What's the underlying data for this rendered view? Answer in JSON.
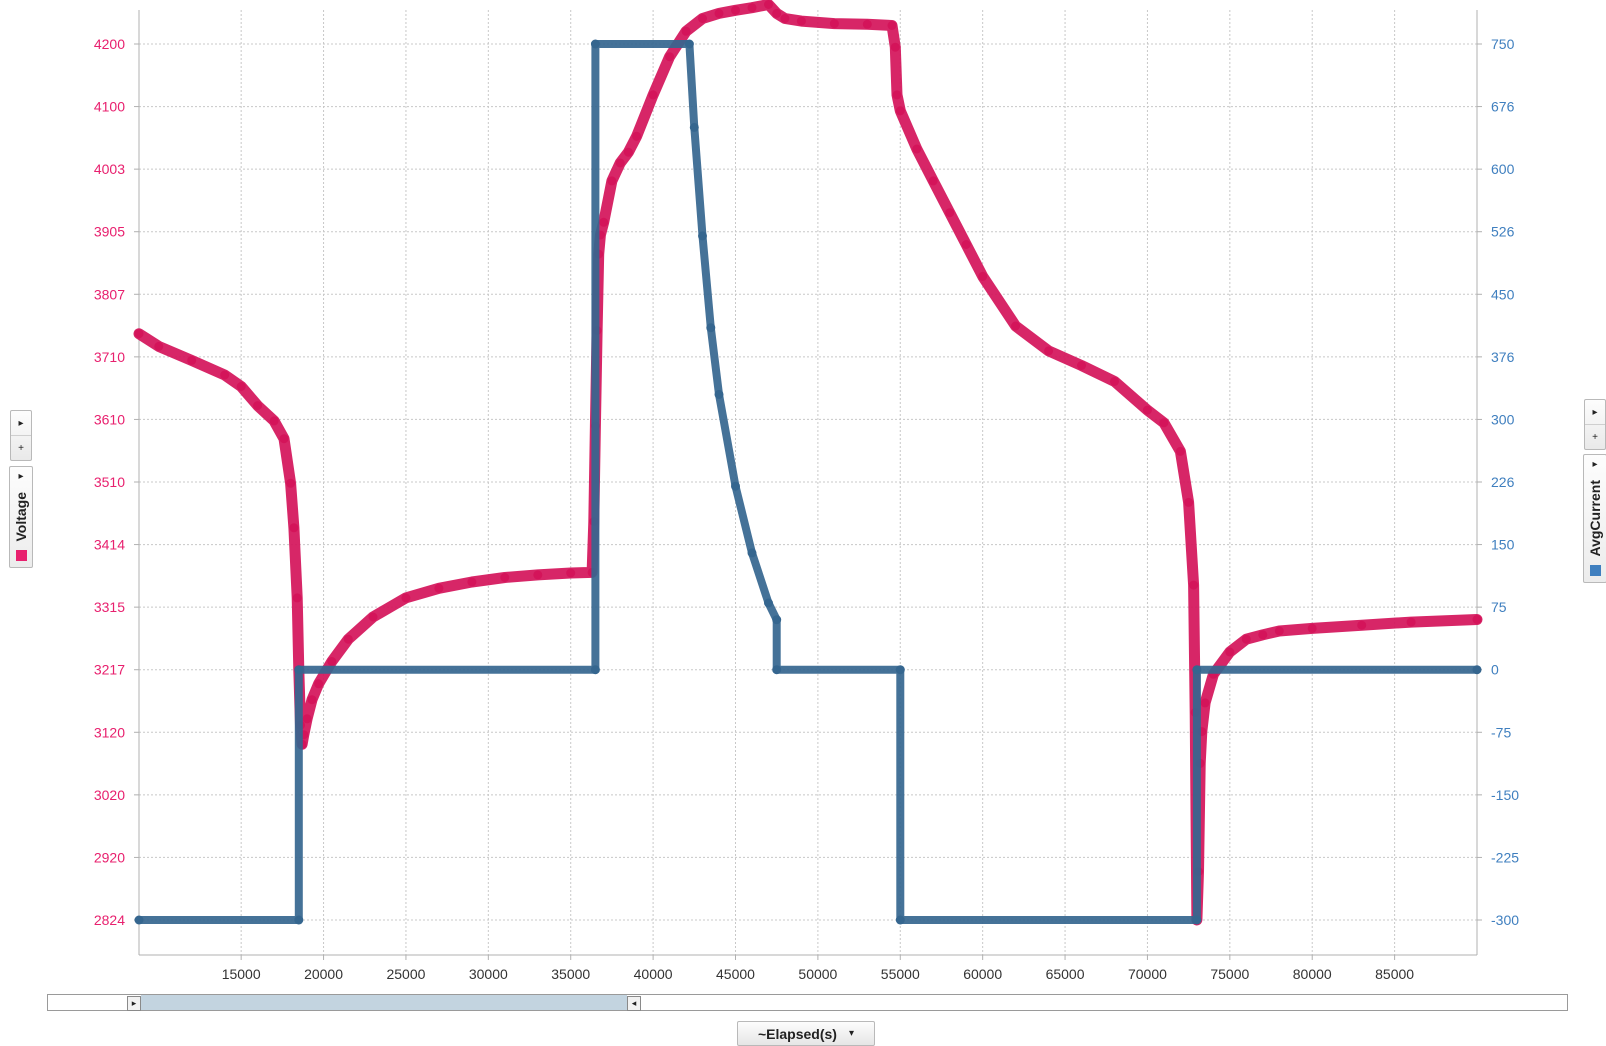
{
  "chart_data": {
    "type": "scatter",
    "title": "",
    "x_axis_selector": "~Elapsed(s)",
    "xlabel": "~Elapsed(s)",
    "xlim": [
      8800,
      90000
    ],
    "x_ticks": [
      "15000",
      "20000",
      "25000",
      "30000",
      "35000",
      "40000",
      "45000",
      "50000",
      "55000",
      "60000",
      "65000",
      "70000",
      "75000",
      "80000",
      "85000"
    ],
    "y_left": {
      "label": "Voltage",
      "color": "#e8206e",
      "range": [
        2824,
        4200
      ],
      "ticks": [
        "4200",
        "4100",
        "4003",
        "3905",
        "3807",
        "3710",
        "3610",
        "3510",
        "3414",
        "3315",
        "3217",
        "3120",
        "3020",
        "2920",
        "2824"
      ]
    },
    "y_right": {
      "label": "AvgCurrent",
      "color": "#3f7fbf",
      "range": [
        -300,
        750
      ],
      "ticks": [
        "750",
        "676",
        "600",
        "526",
        "450",
        "376",
        "300",
        "226",
        "150",
        "75",
        "0",
        "-75",
        "-150",
        "-225",
        "-300"
      ]
    },
    "grid": true,
    "series": [
      {
        "name": "Voltage",
        "axis": "left",
        "color": "#d4145a",
        "x": [
          8800,
          10000,
          12000,
          14000,
          15000,
          16000,
          17000,
          17600,
          18000,
          18200,
          18400,
          18500,
          18600,
          18700,
          18800,
          19000,
          19300,
          19700,
          20500,
          21500,
          23000,
          25000,
          27000,
          29000,
          31000,
          33000,
          35000,
          36300,
          36400,
          36500,
          36600,
          36700,
          36800,
          37000,
          37500,
          38000,
          38500,
          39000,
          40000,
          41000,
          42000,
          43000,
          44000,
          45000,
          46000,
          47000,
          47500,
          48000,
          49000,
          51000,
          53000,
          54500,
          54700,
          54800,
          55000,
          56000,
          57000,
          58000,
          59000,
          60000,
          62000,
          64000,
          66000,
          68000,
          70000,
          71000,
          72000,
          72500,
          72800,
          72900,
          73000,
          73100,
          73200,
          73300,
          73500,
          74000,
          75000,
          76000,
          77000,
          78000,
          80000,
          83000,
          86000,
          90000
        ],
        "y": [
          3745,
          3725,
          3703,
          3680,
          3662,
          3632,
          3608,
          3580,
          3510,
          3440,
          3330,
          3217,
          3130,
          3100,
          3115,
          3140,
          3170,
          3195,
          3230,
          3265,
          3300,
          3330,
          3345,
          3355,
          3362,
          3366,
          3369,
          3370,
          3450,
          3600,
          3750,
          3870,
          3900,
          3920,
          3985,
          4013,
          4030,
          4055,
          4120,
          4180,
          4220,
          4240,
          4248,
          4253,
          4257,
          4262,
          4248,
          4240,
          4236,
          4232,
          4231,
          4229,
          4195,
          4120,
          4095,
          4035,
          3985,
          3935,
          3885,
          3835,
          3757,
          3718,
          3695,
          3670,
          3625,
          3605,
          3560,
          3480,
          3350,
          3150,
          2824,
          2900,
          3070,
          3120,
          3165,
          3210,
          3245,
          3265,
          3272,
          3278,
          3282,
          3287,
          3292,
          3296
        ]
      },
      {
        "name": "AvgCurrent",
        "axis": "right",
        "color": "#35668f",
        "x": [
          8800,
          18500,
          18500,
          36500,
          36500,
          42200,
          42500,
          43000,
          43500,
          44000,
          45000,
          46000,
          47000,
          47500,
          47500,
          55000,
          55000,
          73000,
          73000,
          90000
        ],
        "y": [
          -300,
          -300,
          0,
          0,
          750,
          750,
          650,
          520,
          410,
          330,
          220,
          140,
          80,
          60,
          0,
          0,
          -300,
          -300,
          0,
          0
        ]
      }
    ]
  },
  "controls": {
    "expand_label": "▸",
    "add_label": "+",
    "dropdown_label": "▾",
    "scroll_left_label": "▸",
    "scroll_right_label": "◂"
  }
}
